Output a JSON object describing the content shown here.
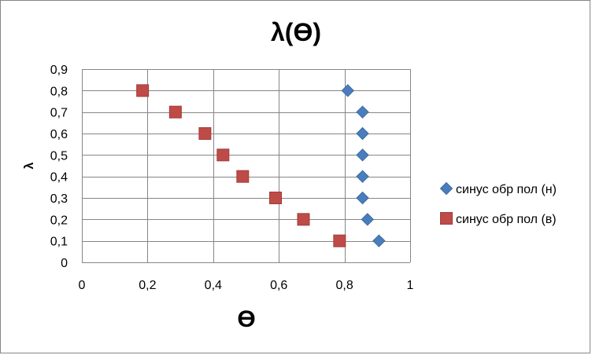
{
  "chart_data": {
    "type": "scatter",
    "title": "λ(ϴ)",
    "xlabel": "ϴ",
    "ylabel": "λ",
    "xlim": [
      0,
      1
    ],
    "ylim": [
      0,
      0.9
    ],
    "x_ticks": [
      "0",
      "0,2",
      "0,4",
      "0,6",
      "0,8",
      "1"
    ],
    "y_ticks": [
      "0",
      "0,1",
      "0,2",
      "0,3",
      "0,4",
      "0,5",
      "0,6",
      "0,7",
      "0,8",
      "0,9"
    ],
    "grid": true,
    "legend_position": "right",
    "series": [
      {
        "name": "синус обр пол (н)",
        "marker": "diamond",
        "color": "#4a7ebb",
        "points": [
          {
            "x": 0.81,
            "y": 0.8
          },
          {
            "x": 0.855,
            "y": 0.7
          },
          {
            "x": 0.855,
            "y": 0.6
          },
          {
            "x": 0.855,
            "y": 0.5
          },
          {
            "x": 0.855,
            "y": 0.4
          },
          {
            "x": 0.855,
            "y": 0.3
          },
          {
            "x": 0.87,
            "y": 0.2
          },
          {
            "x": 0.905,
            "y": 0.1
          }
        ]
      },
      {
        "name": "синус обр пол (в)",
        "marker": "square",
        "color": "#be4b48",
        "points": [
          {
            "x": 0.185,
            "y": 0.8
          },
          {
            "x": 0.285,
            "y": 0.7
          },
          {
            "x": 0.375,
            "y": 0.6
          },
          {
            "x": 0.43,
            "y": 0.5
          },
          {
            "x": 0.49,
            "y": 0.4
          },
          {
            "x": 0.59,
            "y": 0.3
          },
          {
            "x": 0.675,
            "y": 0.2
          },
          {
            "x": 0.785,
            "y": 0.1
          }
        ]
      }
    ]
  }
}
